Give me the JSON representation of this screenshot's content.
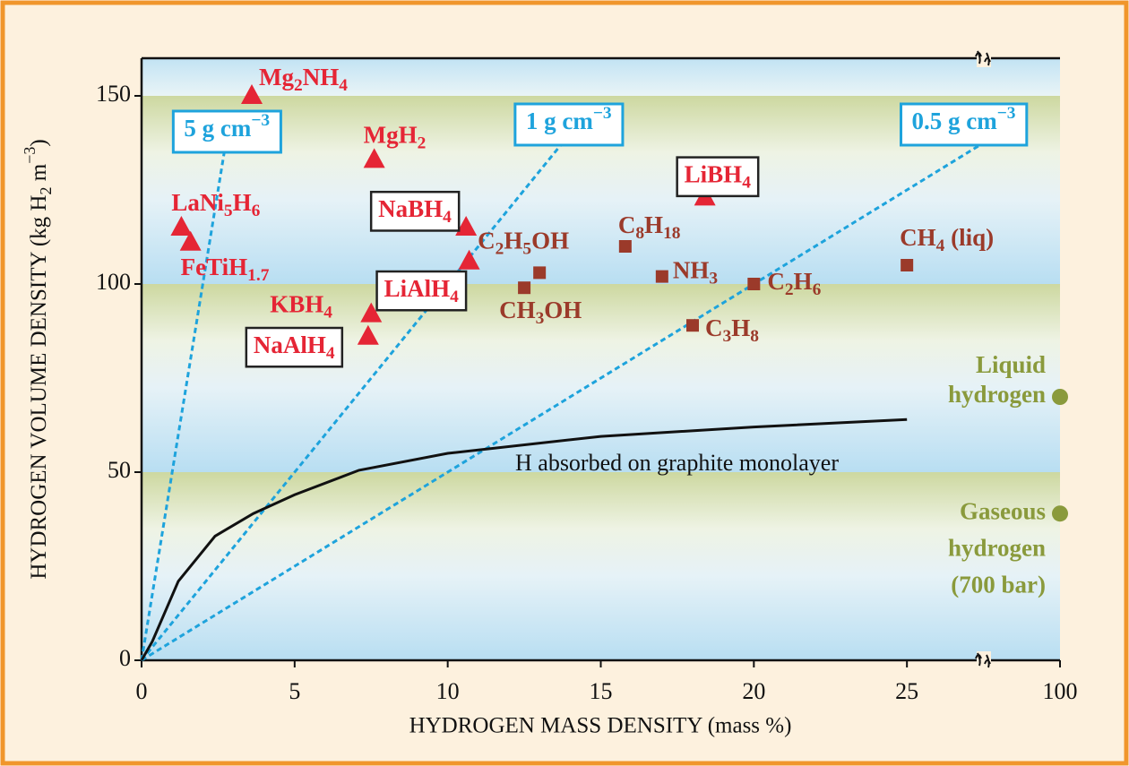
{
  "chart_data": {
    "type": "scatter",
    "xlabel": "HYDROGEN MASS DENSITY (mass %)",
    "ylabel": "HYDROGEN VOLUME DENSITY (kg H2 m−3)",
    "xlim": [
      0,
      100
    ],
    "xticks": [
      0,
      5,
      10,
      15,
      20,
      25,
      100
    ],
    "ylim": [
      0,
      160
    ],
    "yticks": [
      0,
      50,
      100,
      150
    ],
    "series": [
      {
        "marker": "triangle",
        "color": "#e52535",
        "labels": [
          "Mg2NH4",
          "MgH2",
          "LaNi5H6",
          "FeTiH1.7",
          "NaBH4",
          "LiAlH4",
          "KBH4",
          "NaAlH4",
          "LiBH4"
        ],
        "x": [
          3.6,
          7.6,
          1.3,
          1.6,
          10.6,
          10.7,
          7.5,
          7.4,
          18.4
        ],
        "values": [
          150,
          133,
          115,
          111,
          115,
          106,
          92,
          86,
          123
        ]
      },
      {
        "marker": "square",
        "color": "#9b3a2a",
        "labels": [
          "C2H5OH",
          "CH3OH",
          "C8H18",
          "NH3",
          "C2H6",
          "C3H8",
          "CH4 (liq)"
        ],
        "x": [
          13,
          12.5,
          15.8,
          17,
          20,
          18,
          25
        ],
        "values": [
          103,
          99,
          110,
          102,
          100,
          89,
          105
        ]
      },
      {
        "marker": "circle",
        "color": "#8a9a3c",
        "labels": [
          [
            "Liquid",
            "hydrogen"
          ],
          [
            "Gaseous",
            "hydrogen",
            "(700 bar)"
          ]
        ],
        "x": [
          100,
          100
        ],
        "values": [
          70,
          39
        ]
      }
    ],
    "density_lines": {
      "color": "#1ea3dc",
      "values": [
        5,
        1,
        0.5
      ],
      "labels": [
        "5 g cm−3",
        "1 g cm−3",
        "0.5 g cm−3"
      ]
    },
    "curve": {
      "label": "H absorbed on graphite monolayer",
      "color": "#111111",
      "x": [
        0,
        0.35,
        1.2,
        2.4,
        3.65,
        5,
        7.1,
        10,
        15,
        20,
        25
      ],
      "values": [
        0,
        5,
        21,
        33,
        39,
        44,
        50.5,
        55,
        59.5,
        62,
        64
      ]
    }
  }
}
